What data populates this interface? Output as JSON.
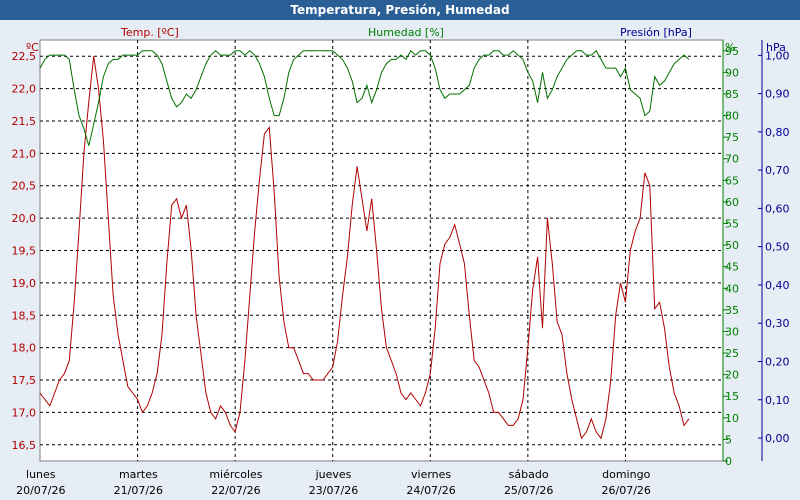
{
  "window": {
    "title": "Temperatura, Presión, Humedad"
  },
  "chart_data": {
    "type": "line",
    "title": "Temperatura, Presión, Humedad",
    "axes": {
      "temp": {
        "label": "Temp. [ºC]",
        "unit": "ºC",
        "min": 16.25,
        "max": 22.75,
        "ticks": [
          "16,5",
          "17,0",
          "17,5",
          "18,0",
          "18,5",
          "19,0",
          "19,5",
          "20,0",
          "20,5",
          "21,0",
          "21,5",
          "22,0",
          "22,5"
        ],
        "color": "#b00000"
      },
      "hum": {
        "label": "Humedad [%]",
        "unit": "%",
        "min": 0,
        "max": 97.5,
        "ticks": [
          "0",
          "5",
          "10",
          "15",
          "20",
          "25",
          "30",
          "35",
          "40",
          "45",
          "50",
          "55",
          "60",
          "65",
          "70",
          "75",
          "80",
          "85",
          "90",
          "95"
        ],
        "color": "#008000"
      },
      "pres": {
        "label": "Presión [hPa]",
        "unit": "hPa",
        "min": -0.06,
        "max": 1.04,
        "ticks": [
          "0,00",
          "0,10",
          "0,20",
          "0,30",
          "0,40",
          "0,50",
          "0,60",
          "0,70",
          "0,80",
          "0,90",
          "1,00"
        ],
        "color": "#000090"
      }
    },
    "x_range": [
      0,
      7
    ],
    "days": [
      {
        "name": "lunes",
        "date": "20/07/26"
      },
      {
        "name": "martes",
        "date": "21/07/26"
      },
      {
        "name": "miércoles",
        "date": "22/07/26"
      },
      {
        "name": "jueves",
        "date": "23/07/26"
      },
      {
        "name": "viernes",
        "date": "24/07/26"
      },
      {
        "name": "sábado",
        "date": "25/07/26"
      },
      {
        "name": "domingo",
        "date": "26/07/26"
      }
    ],
    "grid": true,
    "series": [
      {
        "name": "Temp. [ºC]",
        "color": "#b00000",
        "points": [
          [
            0.0,
            17.3
          ],
          [
            0.05,
            17.2
          ],
          [
            0.1,
            17.1
          ],
          [
            0.15,
            17.3
          ],
          [
            0.2,
            17.5
          ],
          [
            0.25,
            17.6
          ],
          [
            0.3,
            17.8
          ],
          [
            0.35,
            18.7
          ],
          [
            0.4,
            19.8
          ],
          [
            0.45,
            21.0
          ],
          [
            0.5,
            21.8
          ],
          [
            0.55,
            22.5
          ],
          [
            0.6,
            22.0
          ],
          [
            0.65,
            21.2
          ],
          [
            0.7,
            20.0
          ],
          [
            0.75,
            18.8
          ],
          [
            0.8,
            18.2
          ],
          [
            0.85,
            17.8
          ],
          [
            0.9,
            17.4
          ],
          [
            0.95,
            17.3
          ],
          [
            1.0,
            17.2
          ],
          [
            1.05,
            17.0
          ],
          [
            1.1,
            17.1
          ],
          [
            1.15,
            17.3
          ],
          [
            1.2,
            17.6
          ],
          [
            1.25,
            18.2
          ],
          [
            1.3,
            19.3
          ],
          [
            1.35,
            20.2
          ],
          [
            1.4,
            20.3
          ],
          [
            1.45,
            20.0
          ],
          [
            1.5,
            20.2
          ],
          [
            1.55,
            19.5
          ],
          [
            1.6,
            18.5
          ],
          [
            1.65,
            17.9
          ],
          [
            1.7,
            17.3
          ],
          [
            1.75,
            17.0
          ],
          [
            1.8,
            16.9
          ],
          [
            1.85,
            17.1
          ],
          [
            1.9,
            17.0
          ],
          [
            1.95,
            16.8
          ],
          [
            2.0,
            16.7
          ],
          [
            2.05,
            17.0
          ],
          [
            2.1,
            17.8
          ],
          [
            2.15,
            18.8
          ],
          [
            2.2,
            19.8
          ],
          [
            2.25,
            20.6
          ],
          [
            2.3,
            21.3
          ],
          [
            2.35,
            21.4
          ],
          [
            2.4,
            20.4
          ],
          [
            2.45,
            19.1
          ],
          [
            2.5,
            18.4
          ],
          [
            2.55,
            18.0
          ],
          [
            2.6,
            18.0
          ],
          [
            2.65,
            17.8
          ],
          [
            2.7,
            17.6
          ],
          [
            2.75,
            17.6
          ],
          [
            2.8,
            17.5
          ],
          [
            2.85,
            17.5
          ],
          [
            2.9,
            17.5
          ],
          [
            2.95,
            17.6
          ],
          [
            3.0,
            17.7
          ],
          [
            3.05,
            18.1
          ],
          [
            3.1,
            18.8
          ],
          [
            3.15,
            19.4
          ],
          [
            3.2,
            20.2
          ],
          [
            3.25,
            20.8
          ],
          [
            3.3,
            20.3
          ],
          [
            3.35,
            19.8
          ],
          [
            3.4,
            20.3
          ],
          [
            3.45,
            19.5
          ],
          [
            3.5,
            18.6
          ],
          [
            3.55,
            18.0
          ],
          [
            3.6,
            17.8
          ],
          [
            3.65,
            17.6
          ],
          [
            3.7,
            17.3
          ],
          [
            3.75,
            17.2
          ],
          [
            3.8,
            17.3
          ],
          [
            3.85,
            17.2
          ],
          [
            3.9,
            17.1
          ],
          [
            3.95,
            17.3
          ],
          [
            4.0,
            17.6
          ],
          [
            4.05,
            18.3
          ],
          [
            4.1,
            19.3
          ],
          [
            4.15,
            19.6
          ],
          [
            4.2,
            19.7
          ],
          [
            4.25,
            19.9
          ],
          [
            4.3,
            19.6
          ],
          [
            4.35,
            19.3
          ],
          [
            4.4,
            18.5
          ],
          [
            4.45,
            17.8
          ],
          [
            4.5,
            17.7
          ],
          [
            4.55,
            17.5
          ],
          [
            4.6,
            17.3
          ],
          [
            4.65,
            17.0
          ],
          [
            4.7,
            17.0
          ],
          [
            4.75,
            16.9
          ],
          [
            4.8,
            16.8
          ],
          [
            4.85,
            16.8
          ],
          [
            4.9,
            16.9
          ],
          [
            4.95,
            17.2
          ],
          [
            5.0,
            18.0
          ],
          [
            5.05,
            18.9
          ],
          [
            5.1,
            19.4
          ],
          [
            5.15,
            18.3
          ],
          [
            5.2,
            20.0
          ],
          [
            5.25,
            19.3
          ],
          [
            5.3,
            18.4
          ],
          [
            5.35,
            18.2
          ],
          [
            5.4,
            17.6
          ],
          [
            5.45,
            17.2
          ],
          [
            5.5,
            16.9
          ],
          [
            5.55,
            16.6
          ],
          [
            5.6,
            16.7
          ],
          [
            5.65,
            16.9
          ],
          [
            5.7,
            16.7
          ],
          [
            5.75,
            16.6
          ],
          [
            5.8,
            16.9
          ],
          [
            5.85,
            17.5
          ],
          [
            5.9,
            18.5
          ],
          [
            5.95,
            19.0
          ],
          [
            6.0,
            18.7
          ],
          [
            6.05,
            19.5
          ],
          [
            6.1,
            19.8
          ],
          [
            6.15,
            20.0
          ],
          [
            6.2,
            20.7
          ],
          [
            6.25,
            20.5
          ],
          [
            6.3,
            18.6
          ],
          [
            6.35,
            18.7
          ],
          [
            6.4,
            18.3
          ],
          [
            6.45,
            17.7
          ],
          [
            6.5,
            17.3
          ],
          [
            6.55,
            17.1
          ],
          [
            6.6,
            16.8
          ],
          [
            6.65,
            16.9
          ]
        ]
      },
      {
        "name": "Humedad [%]",
        "color": "#007000",
        "points": [
          [
            0.0,
            91
          ],
          [
            0.05,
            93
          ],
          [
            0.1,
            94
          ],
          [
            0.15,
            94
          ],
          [
            0.2,
            94
          ],
          [
            0.25,
            94
          ],
          [
            0.3,
            93
          ],
          [
            0.35,
            86
          ],
          [
            0.4,
            80
          ],
          [
            0.45,
            77
          ],
          [
            0.5,
            73
          ],
          [
            0.55,
            78
          ],
          [
            0.6,
            83
          ],
          [
            0.65,
            89
          ],
          [
            0.7,
            92
          ],
          [
            0.75,
            93
          ],
          [
            0.8,
            93
          ],
          [
            0.85,
            94
          ],
          [
            0.9,
            94
          ],
          [
            0.95,
            94
          ],
          [
            1.0,
            94
          ],
          [
            1.05,
            95
          ],
          [
            1.1,
            95
          ],
          [
            1.15,
            95
          ],
          [
            1.2,
            94
          ],
          [
            1.25,
            92
          ],
          [
            1.3,
            88
          ],
          [
            1.35,
            84
          ],
          [
            1.4,
            82
          ],
          [
            1.45,
            83
          ],
          [
            1.5,
            85
          ],
          [
            1.55,
            84
          ],
          [
            1.6,
            86
          ],
          [
            1.65,
            89
          ],
          [
            1.7,
            92
          ],
          [
            1.75,
            94
          ],
          [
            1.8,
            95
          ],
          [
            1.85,
            94
          ],
          [
            1.9,
            94
          ],
          [
            1.95,
            94
          ],
          [
            2.0,
            95
          ],
          [
            2.05,
            95
          ],
          [
            2.1,
            94
          ],
          [
            2.15,
            95
          ],
          [
            2.2,
            94
          ],
          [
            2.25,
            92
          ],
          [
            2.3,
            89
          ],
          [
            2.35,
            84
          ],
          [
            2.4,
            80
          ],
          [
            2.45,
            80
          ],
          [
            2.5,
            84
          ],
          [
            2.55,
            90
          ],
          [
            2.6,
            93
          ],
          [
            2.65,
            94
          ],
          [
            2.7,
            95
          ],
          [
            2.75,
            95
          ],
          [
            2.8,
            95
          ],
          [
            2.85,
            95
          ],
          [
            2.9,
            95
          ],
          [
            2.95,
            95
          ],
          [
            3.0,
            95
          ],
          [
            3.05,
            94
          ],
          [
            3.1,
            93
          ],
          [
            3.15,
            91
          ],
          [
            3.2,
            88
          ],
          [
            3.25,
            83
          ],
          [
            3.3,
            84
          ],
          [
            3.35,
            87
          ],
          [
            3.4,
            83
          ],
          [
            3.45,
            86
          ],
          [
            3.5,
            90
          ],
          [
            3.55,
            92
          ],
          [
            3.6,
            93
          ],
          [
            3.65,
            93
          ],
          [
            3.7,
            94
          ],
          [
            3.75,
            93
          ],
          [
            3.8,
            95
          ],
          [
            3.85,
            94
          ],
          [
            3.9,
            95
          ],
          [
            3.95,
            95
          ],
          [
            4.0,
            94
          ],
          [
            4.05,
            91
          ],
          [
            4.1,
            86
          ],
          [
            4.15,
            84
          ],
          [
            4.2,
            85
          ],
          [
            4.25,
            85
          ],
          [
            4.3,
            85
          ],
          [
            4.35,
            86
          ],
          [
            4.4,
            87
          ],
          [
            4.45,
            91
          ],
          [
            4.5,
            93
          ],
          [
            4.55,
            94
          ],
          [
            4.6,
            94
          ],
          [
            4.65,
            95
          ],
          [
            4.7,
            95
          ],
          [
            4.75,
            94
          ],
          [
            4.8,
            94
          ],
          [
            4.85,
            95
          ],
          [
            4.9,
            94
          ],
          [
            4.95,
            93
          ],
          [
            5.0,
            90
          ],
          [
            5.05,
            88
          ],
          [
            5.1,
            83
          ],
          [
            5.15,
            90
          ],
          [
            5.2,
            84
          ],
          [
            5.25,
            86
          ],
          [
            5.3,
            89
          ],
          [
            5.35,
            91
          ],
          [
            5.4,
            93
          ],
          [
            5.45,
            94
          ],
          [
            5.5,
            95
          ],
          [
            5.55,
            95
          ],
          [
            5.6,
            94
          ],
          [
            5.65,
            94
          ],
          [
            5.7,
            95
          ],
          [
            5.75,
            93
          ],
          [
            5.8,
            91
          ],
          [
            5.85,
            91
          ],
          [
            5.9,
            91
          ],
          [
            5.95,
            89
          ],
          [
            6.0,
            91
          ],
          [
            6.05,
            86
          ],
          [
            6.1,
            85
          ],
          [
            6.15,
            84
          ],
          [
            6.2,
            80
          ],
          [
            6.25,
            81
          ],
          [
            6.3,
            89
          ],
          [
            6.35,
            87
          ],
          [
            6.4,
            88
          ],
          [
            6.45,
            90
          ],
          [
            6.5,
            92
          ],
          [
            6.55,
            93
          ],
          [
            6.6,
            94
          ],
          [
            6.65,
            93
          ]
        ]
      },
      {
        "name": "Presión [hPa]",
        "color": "#000090",
        "points": []
      }
    ]
  }
}
